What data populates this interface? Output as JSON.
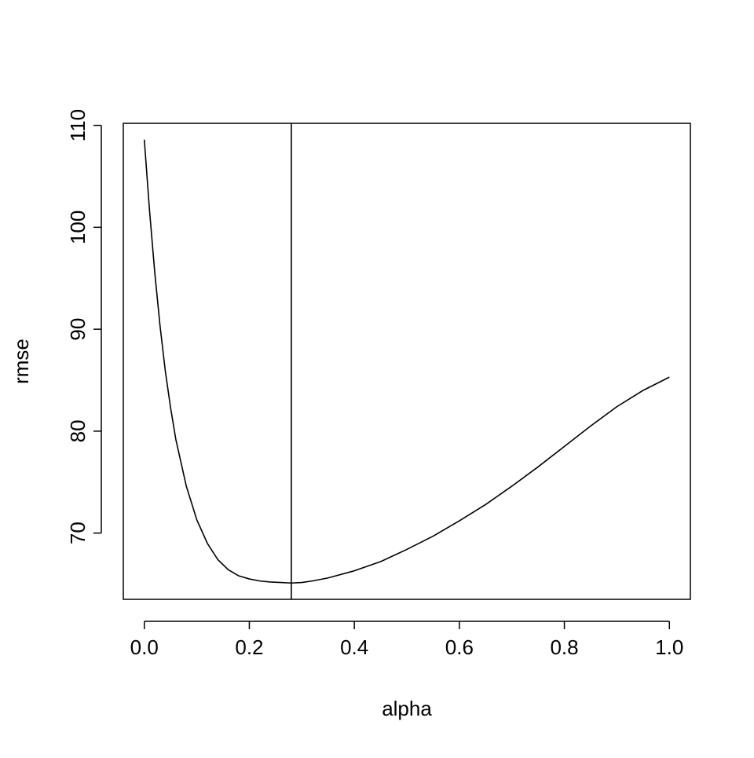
{
  "chart_data": {
    "type": "line",
    "title": "",
    "xlabel": "alpha",
    "ylabel": "rmse",
    "xlim": [
      -0.04,
      1.04
    ],
    "ylim": [
      63.5,
      110.2
    ],
    "xticks": [
      0.0,
      0.2,
      0.4,
      0.6,
      0.8,
      1.0
    ],
    "xtick_labels": [
      "0.0",
      "0.2",
      "0.4",
      "0.6",
      "0.8",
      "1.0"
    ],
    "yticks": [
      70,
      80,
      90,
      100,
      110
    ],
    "ytick_labels": [
      "70",
      "80",
      "90",
      "100",
      "110"
    ],
    "grid": false,
    "series": [
      {
        "x": [
          0.0,
          0.01,
          0.02,
          0.03,
          0.04,
          0.05,
          0.06,
          0.08,
          0.1,
          0.12,
          0.14,
          0.16,
          0.18,
          0.2,
          0.22,
          0.24,
          0.26,
          0.28,
          0.3,
          0.32,
          0.35,
          0.4,
          0.45,
          0.5,
          0.55,
          0.6,
          0.65,
          0.7,
          0.75,
          0.8,
          0.85,
          0.9,
          0.95,
          1.0
        ],
        "y": [
          108.6,
          101.6,
          95.5,
          90.3,
          85.9,
          82.3,
          79.2,
          74.6,
          71.3,
          69.0,
          67.4,
          66.4,
          65.8,
          65.5,
          65.3,
          65.2,
          65.15,
          65.1,
          65.15,
          65.3,
          65.6,
          66.3,
          67.2,
          68.4,
          69.7,
          71.2,
          72.8,
          74.6,
          76.5,
          78.5,
          80.5,
          82.4,
          84.0,
          85.3
        ],
        "color": "#000000"
      }
    ],
    "vline": {
      "x": 0.28,
      "color": "#000000"
    }
  }
}
